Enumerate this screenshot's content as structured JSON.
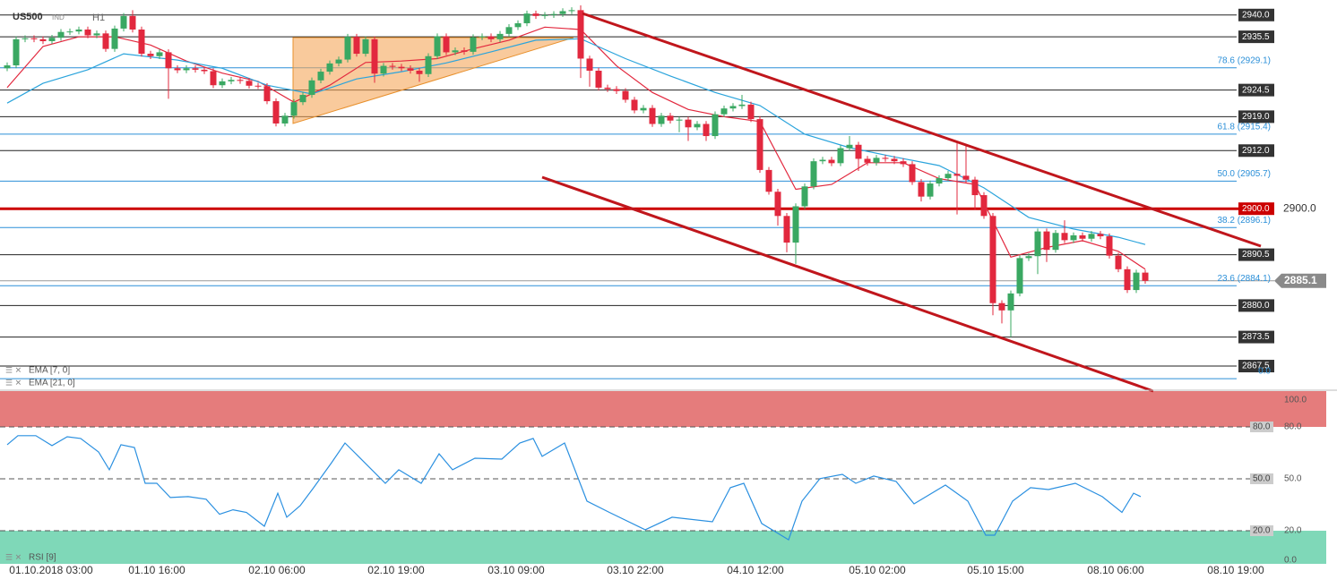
{
  "chart_data": {
    "type": "candlestick",
    "title": "US500",
    "tag": "IND",
    "timeframe": "H1",
    "xlim": [
      -0.8,
      148.2
    ],
    "xticks": [
      {
        "value": 4.9,
        "label": "01.10.2018 03:00"
      },
      {
        "value": 16.7,
        "label": "01.10 16:00"
      },
      {
        "value": 30.1,
        "label": "02.10 06:00"
      },
      {
        "value": 43.4,
        "label": "02.10 19:00"
      },
      {
        "value": 56.8,
        "label": "03.10 09:00"
      },
      {
        "value": 70.1,
        "label": "03.10 22:00"
      },
      {
        "value": 83.5,
        "label": "04.10 12:00"
      },
      {
        "value": 97.1,
        "label": "05.10 02:00"
      },
      {
        "value": 110.3,
        "label": "05.10 15:00"
      },
      {
        "value": 123.7,
        "label": "08.10 06:00"
      },
      {
        "value": 137.1,
        "label": "08.10 19:00"
      }
    ],
    "ylim": [
      2862.7,
      2943.1
    ],
    "up_color": "#3aa862",
    "down_color": "#e2283e",
    "open": [
      2929.0,
      2929.6,
      2935.0,
      2935.2,
      2935.0,
      2934.6,
      2935.3,
      2936.5,
      2936.6,
      2937.0,
      2935.8,
      2936.2,
      2933.0,
      2937.2,
      2939.8,
      2937.0,
      2932.0,
      2931.5,
      2932.3,
      2929.0,
      2928.6,
      2929.0,
      2928.7,
      2928.4,
      2925.5,
      2926.3,
      2926.6,
      2926.4,
      2925.4,
      2925.3,
      2922.2,
      2917.6,
      2919.2,
      2922.0,
      2923.5,
      2926.5,
      2928.3,
      2930.0,
      2930.8,
      2935.5,
      2932.0,
      2935.0,
      2927.9,
      2929.5,
      2929.3,
      2929.0,
      2928.5,
      2927.8,
      2931.5,
      2935.6,
      2932.3,
      2932.7,
      2932.4,
      2935.4,
      2935.6,
      2935.0,
      2936.1,
      2937.5,
      2938.3,
      2940.3,
      2939.8,
      2940.0,
      2940.2,
      2940.8,
      2941.0,
      2931.0,
      2928.5,
      2925.0,
      2924.7,
      2924.3,
      2922.5,
      2920.3,
      2920.8,
      2917.5,
      2919.2,
      2918.2,
      2918.4,
      2916.8,
      2917.5,
      2915.0,
      2919.5,
      2920.7,
      2921.2,
      2921.5,
      2918.5,
      2908.0,
      2903.5,
      2898.5,
      2893.0,
      2900.5,
      2904.6,
      2909.8,
      2910.1,
      2909.4,
      2912.5,
      2913.2,
      2910.3,
      2909.5,
      2910.5,
      2910.3,
      2909.8,
      2909.2,
      2905.5,
      2902.5,
      2905.2,
      2906.3,
      2907.2,
      2906.8,
      2906.0,
      2902.8,
      2898.5,
      2880.5,
      2879.0,
      2882.5,
      2889.8,
      2890.2,
      2895.3,
      2891.5,
      2895.0,
      2893.5,
      2894.5,
      2893.8,
      2894.8,
      2894.3,
      2890.3,
      2887.5,
      2883.2,
      2886.8
    ],
    "high": [
      2930.2,
      2935.6,
      2935.8,
      2935.8,
      2935.6,
      2935.9,
      2937.1,
      2937.2,
      2937.6,
      2937.6,
      2936.8,
      2936.8,
      2937.8,
      2940.4,
      2941.0,
      2937.6,
      2932.6,
      2932.9,
      2932.9,
      2929.6,
      2929.6,
      2929.6,
      2929.3,
      2929.0,
      2926.9,
      2927.2,
      2927.2,
      2927.0,
      2926.0,
      2925.9,
      2922.8,
      2919.8,
      2922.6,
      2924.1,
      2927.1,
      2928.9,
      2930.6,
      2931.4,
      2936.1,
      2936.1,
      2935.6,
      2935.6,
      2930.1,
      2930.1,
      2929.9,
      2929.6,
      2929.1,
      2932.1,
      2936.2,
      2936.2,
      2933.3,
      2933.3,
      2936.0,
      2936.2,
      2936.2,
      2936.7,
      2938.1,
      2938.9,
      2940.9,
      2940.9,
      2940.6,
      2940.8,
      2941.4,
      2941.6,
      2942.0,
      2931.6,
      2929.1,
      2925.6,
      2925.3,
      2924.9,
      2923.1,
      2921.4,
      2921.4,
      2919.8,
      2919.8,
      2919.0,
      2919.0,
      2918.1,
      2918.1,
      2920.1,
      2921.3,
      2921.8,
      2923.5,
      2922.1,
      2919.1,
      2908.6,
      2904.1,
      2899.1,
      2901.1,
      2905.2,
      2910.4,
      2910.7,
      2910.7,
      2913.1,
      2915.0,
      2913.8,
      2910.9,
      2911.1,
      2911.1,
      2910.9,
      2910.4,
      2909.8,
      2906.1,
      2905.8,
      2906.9,
      2907.8,
      2913.5,
      2913.0,
      2906.6,
      2903.4,
      2899.1,
      2881.1,
      2883.1,
      2890.4,
      2890.8,
      2895.9,
      2895.9,
      2895.6,
      2897.6,
      2895.1,
      2895.1,
      2895.4,
      2895.4,
      2894.9,
      2890.9,
      2888.1,
      2887.4,
      2887.4
    ],
    "low": [
      2928.4,
      2929.0,
      2934.4,
      2934.4,
      2934.0,
      2934.0,
      2934.7,
      2935.9,
      2936.0,
      2935.2,
      2935.2,
      2932.4,
      2932.4,
      2936.6,
      2936.4,
      2931.4,
      2930.9,
      2930.9,
      2922.7,
      2928.0,
      2928.0,
      2928.1,
      2927.8,
      2924.9,
      2924.9,
      2925.7,
      2925.8,
      2924.8,
      2924.7,
      2921.6,
      2917.0,
      2917.0,
      2918.6,
      2921.4,
      2922.9,
      2925.9,
      2927.7,
      2929.4,
      2930.2,
      2931.4,
      2931.4,
      2926.0,
      2927.3,
      2928.7,
      2928.4,
      2927.9,
      2926.2,
      2927.2,
      2930.9,
      2931.7,
      2931.7,
      2931.8,
      2931.8,
      2934.8,
      2934.4,
      2934.4,
      2935.5,
      2936.9,
      2937.7,
      2939.2,
      2939.2,
      2939.4,
      2939.6,
      2940.2,
      2927.0,
      2925.2,
      2924.4,
      2924.1,
      2923.7,
      2921.9,
      2919.7,
      2919.7,
      2916.9,
      2916.9,
      2917.6,
      2915.8,
      2914.0,
      2916.2,
      2914.0,
      2914.4,
      2918.9,
      2920.1,
      2920.6,
      2917.9,
      2907.4,
      2902.9,
      2896.5,
      2891.0,
      2888.6,
      2899.9,
      2904.0,
      2909.2,
      2908.8,
      2908.8,
      2911.9,
      2907.8,
      2908.9,
      2908.9,
      2909.7,
      2909.2,
      2908.6,
      2904.9,
      2901.5,
      2901.9,
      2904.6,
      2905.7,
      2898.8,
      2905.4,
      2899.8,
      2897.9,
      2878.0,
      2876.3,
      2873.5,
      2881.9,
      2889.2,
      2886.5,
      2889.0,
      2890.9,
      2892.9,
      2892.9,
      2893.2,
      2893.2,
      2893.7,
      2889.7,
      2886.9,
      2882.6,
      2882.6,
      2884.5
    ],
    "close": [
      2929.6,
      2935.0,
      2935.2,
      2935.0,
      2934.6,
      2935.3,
      2936.5,
      2936.6,
      2937.0,
      2935.8,
      2936.2,
      2933.0,
      2937.2,
      2939.8,
      2937.0,
      2932.0,
      2931.5,
      2932.3,
      2929.0,
      2928.6,
      2929.0,
      2928.7,
      2928.4,
      2925.5,
      2926.3,
      2926.6,
      2926.4,
      2925.4,
      2925.3,
      2922.2,
      2917.6,
      2919.2,
      2922.0,
      2923.5,
      2926.5,
      2928.3,
      2930.0,
      2930.8,
      2935.5,
      2932.0,
      2935.0,
      2927.9,
      2929.5,
      2929.3,
      2929.0,
      2928.5,
      2927.8,
      2931.5,
      2935.6,
      2932.3,
      2932.7,
      2932.4,
      2935.4,
      2935.6,
      2935.0,
      2936.1,
      2937.5,
      2938.3,
      2940.3,
      2939.8,
      2940.0,
      2940.2,
      2940.8,
      2941.0,
      2931.0,
      2928.5,
      2925.0,
      2924.7,
      2924.3,
      2922.5,
      2920.3,
      2920.8,
      2917.5,
      2919.2,
      2918.2,
      2918.4,
      2916.8,
      2917.5,
      2915.0,
      2919.5,
      2920.7,
      2921.2,
      2921.5,
      2918.5,
      2908.0,
      2903.5,
      2898.5,
      2893.0,
      2900.5,
      2904.6,
      2909.8,
      2910.1,
      2909.4,
      2912.5,
      2913.2,
      2910.3,
      2909.5,
      2910.5,
      2910.3,
      2909.8,
      2909.2,
      2905.5,
      2902.5,
      2905.2,
      2906.3,
      2907.2,
      2906.8,
      2906.0,
      2902.8,
      2898.5,
      2880.5,
      2879.0,
      2882.5,
      2889.8,
      2890.2,
      2895.3,
      2891.5,
      2895.0,
      2893.5,
      2894.5,
      2893.8,
      2894.8,
      2894.3,
      2890.3,
      2887.5,
      2883.2,
      2886.8,
      2885.1
    ],
    "indicators": [
      {
        "name": "EMA [7, 0]",
        "color": "#e2283e",
        "x": [
          0,
          4,
          8,
          12,
          16,
          20,
          24,
          28,
          32,
          36,
          40,
          44,
          48,
          52,
          56,
          60,
          64,
          68,
          72,
          76,
          80,
          84,
          88,
          92,
          96,
          100,
          104,
          108,
          112,
          116,
          120,
          124,
          127
        ],
        "values": [
          2925,
          2933.5,
          2935.5,
          2935.5,
          2933.8,
          2930.5,
          2928,
          2926.3,
          2922,
          2925.5,
          2930.2,
          2930.5,
          2931,
          2933,
          2934.8,
          2937.5,
          2937,
          2929.5,
          2924,
          2920.5,
          2919,
          2918,
          2904,
          2905,
          2909.5,
          2909.5,
          2906.2,
          2905,
          2890,
          2892,
          2893.4,
          2891.2,
          2887.5
        ]
      },
      {
        "name": "EMA [21, 0]",
        "color": "#2ba4dc",
        "x": [
          0,
          4,
          9,
          13,
          19,
          24,
          29,
          34,
          39,
          44,
          49,
          54,
          59,
          64,
          69,
          74,
          79,
          84,
          89,
          94,
          99,
          104,
          109,
          114,
          119,
          124,
          127
        ],
        "values": [
          2921.8,
          2925.9,
          2928.7,
          2932,
          2930.7,
          2929,
          2925.5,
          2923.7,
          2926.8,
          2928.3,
          2930.1,
          2932.4,
          2934.8,
          2935.1,
          2931,
          2927.4,
          2924,
          2921.3,
          2915.4,
          2912.6,
          2910.7,
          2908.9,
          2904.3,
          2898.2,
          2895.8,
          2894.1,
          2892.6
        ]
      }
    ],
    "levels": [
      {
        "value": 2940,
        "label": "2940.0"
      },
      2935.5,
      2924.5,
      {
        "value": 2919,
        "label": "2919.0"
      },
      {
        "value": 2912,
        "label": "2912.0"
      },
      2890.5,
      {
        "value": 2880,
        "label": "2880.0"
      },
      2873.5,
      2867.5
    ],
    "key_level": {
      "value": 2900,
      "label": "2900.0",
      "color": "#cc0000"
    },
    "fib_levels": [
      {
        "value": 2929.1,
        "label": "78.6 (2929.1)"
      },
      {
        "value": 2915.4,
        "label": "61.8 (2915.4)"
      },
      {
        "value": 2905.7,
        "label": "50.0 (2905.7)"
      },
      {
        "value": 2896.1,
        "label": "38.2 (2896.1)"
      },
      {
        "value": 2884.1,
        "label": "23.6 (2884.1)"
      },
      {
        "value": 2864.9,
        "label": "0.0"
      }
    ],
    "last_price": 2885.1,
    "rsi": {
      "name": "RSI [9]",
      "color": "#2b90e0",
      "ylim": [
        0,
        100
      ],
      "yticks": [
        {
          "value": 100,
          "label": "100.0"
        },
        {
          "value": 80,
          "label": "80.0"
        },
        {
          "value": 50,
          "label": "50.0"
        },
        {
          "value": 20,
          "label": "20.0"
        },
        {
          "value": 0,
          "label": "0.0"
        }
      ],
      "levels": [
        {
          "value": 80,
          "label": "80.0"
        },
        {
          "value": 50,
          "label": "50.0"
        },
        {
          "value": 20,
          "label": "20.0"
        }
      ],
      "overbought_color": "#e57c7c",
      "oversold_color": "#7fd8b8",
      "x": [
        0,
        1.2,
        3.2,
        5,
        6.7,
        8.2,
        10.2,
        11.4,
        12.7,
        14.2,
        15.4,
        16.7,
        18.2,
        20.2,
        22.2,
        23.7,
        25.2,
        26.7,
        28.7,
        30.2,
        31.2,
        32.7,
        34.2,
        36.2,
        37.7,
        39.2,
        42.2,
        43.7,
        46.2,
        48.2,
        49.7,
        52.2,
        55.2,
        57.2,
        58.7,
        59.7,
        62.2,
        64.7,
        67.2,
        71.2,
        74.2,
        78.7,
        80.7,
        82.2,
        84.2,
        87.2,
        88.7,
        90.7,
        93.2,
        94.7,
        96.7,
        99.2,
        101.2,
        104.7,
        107.2,
        109.2,
        110.2,
        112.2,
        114.2,
        116.2,
        119.2,
        122.2,
        124.4,
        125.7,
        126.5
      ],
      "values": [
        69.7,
        74.9,
        74.9,
        69.2,
        74.3,
        73.3,
        65.5,
        55.2,
        69.7,
        68.1,
        47.4,
        47.4,
        39.2,
        39.7,
        38.2,
        29.5,
        32.1,
        30.6,
        22.6,
        41.7,
        27.8,
        34.5,
        44.9,
        59.3,
        70.7,
        63.0,
        47.4,
        55.2,
        47.4,
        64.5,
        55.2,
        61.9,
        61.4,
        70.7,
        73.3,
        63.0,
        70.7,
        37.1,
        30.6,
        20.6,
        27.8,
        25.2,
        44.9,
        47.4,
        24.2,
        14.8,
        37.1,
        50.1,
        52.6,
        47.4,
        51.6,
        48.5,
        35.5,
        46.4,
        37.1,
        17.4,
        17.4,
        37.1,
        44.9,
        43.8,
        47.4,
        39.7,
        30.6,
        41.7,
        39.7
      ]
    }
  }
}
